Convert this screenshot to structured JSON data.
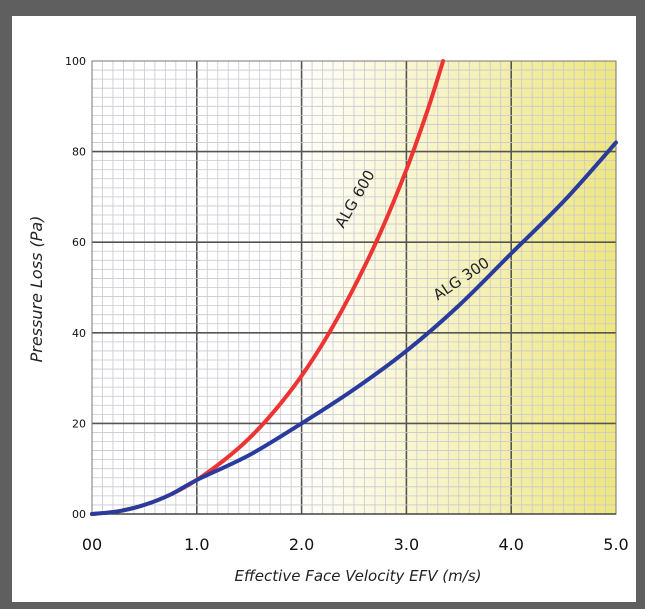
{
  "chart_data": {
    "type": "line",
    "title": "",
    "xlabel": "Effective Face Velocity EFV (m/s)",
    "ylabel": "Pressure Loss (Pa)",
    "xlim": [
      0,
      5.0
    ],
    "ylim": [
      0,
      100
    ],
    "x_ticks": [
      {
        "value": 0,
        "label": "00"
      },
      {
        "value": 1,
        "label": "1.0"
      },
      {
        "value": 2,
        "label": "2.0"
      },
      {
        "value": 3,
        "label": "3.0"
      },
      {
        "value": 4,
        "label": "4.0"
      },
      {
        "value": 5,
        "label": "5.0"
      }
    ],
    "y_ticks": [
      {
        "value": 0,
        "label": "00"
      },
      {
        "value": 20,
        "label": "20"
      },
      {
        "value": 40,
        "label": "40"
      },
      {
        "value": 60,
        "label": "60"
      },
      {
        "value": 80,
        "label": "80"
      },
      {
        "value": 100,
        "label": "100"
      }
    ],
    "grid": true,
    "background": "white-to-yellow gradient",
    "series": [
      {
        "name": "ALG 600",
        "color": "#ee3333",
        "points": [
          [
            0,
            0
          ],
          [
            0.25,
            0.6
          ],
          [
            0.5,
            2
          ],
          [
            0.75,
            4.3
          ],
          [
            1.0,
            7.5
          ],
          [
            1.25,
            11.7
          ],
          [
            1.5,
            16.7
          ],
          [
            1.75,
            23
          ],
          [
            2.0,
            30.5
          ],
          [
            2.25,
            39.5
          ],
          [
            2.5,
            50
          ],
          [
            2.75,
            62
          ],
          [
            3.0,
            76
          ],
          [
            3.2,
            89
          ],
          [
            3.35,
            100
          ]
        ]
      },
      {
        "name": "ALG 300",
        "color": "#2a3b9e",
        "points": [
          [
            0,
            0
          ],
          [
            0.25,
            0.6
          ],
          [
            0.5,
            2
          ],
          [
            0.75,
            4.3
          ],
          [
            1.0,
            7.5
          ],
          [
            1.5,
            13
          ],
          [
            2.0,
            20
          ],
          [
            2.5,
            27.5
          ],
          [
            3.0,
            36
          ],
          [
            3.5,
            46
          ],
          [
            4.0,
            57.5
          ],
          [
            4.5,
            69
          ],
          [
            5.0,
            82
          ]
        ]
      }
    ]
  }
}
